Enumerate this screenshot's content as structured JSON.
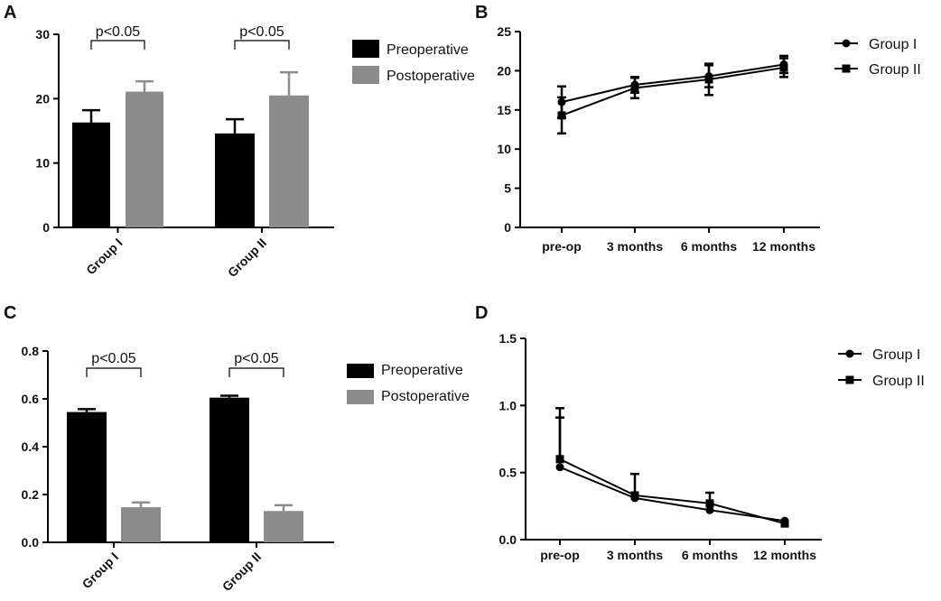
{
  "colors": {
    "pre": "#000000",
    "post": "#8c8c8c",
    "axis": "#000000"
  },
  "chart_data": [
    {
      "panel": "A",
      "type": "bar",
      "categories": [
        "Group I",
        "Group II"
      ],
      "series": [
        {
          "name": "Preoperative",
          "values": [
            16.3,
            14.6
          ],
          "errors": [
            1.9,
            2.2
          ]
        },
        {
          "name": "Postoperative",
          "values": [
            21.1,
            20.5
          ],
          "errors": [
            1.6,
            3.6
          ]
        }
      ],
      "ylim": [
        0,
        30
      ],
      "yticks": [
        0,
        10,
        20,
        30
      ],
      "annotations": [
        "p<0.05",
        "p<0.05"
      ],
      "legend": "right"
    },
    {
      "panel": "B",
      "type": "line",
      "categories": [
        "pre-op",
        "3 months",
        "6 months",
        "12 months"
      ],
      "series": [
        {
          "name": "Group I",
          "marker": "circle",
          "values": [
            16.0,
            18.2,
            19.3,
            20.8
          ],
          "errors": [
            2.0,
            1.0,
            1.4,
            1.1
          ]
        },
        {
          "name": "Group II",
          "marker": "square",
          "values": [
            14.3,
            17.8,
            18.9,
            20.4
          ],
          "errors": [
            2.3,
            1.3,
            2.0,
            1.2
          ]
        }
      ],
      "ylim": [
        0,
        25
      ],
      "yticks": [
        0,
        5,
        10,
        15,
        20,
        25
      ],
      "legend": "right"
    },
    {
      "panel": "C",
      "type": "bar",
      "categories": [
        "Group I",
        "Group II"
      ],
      "series": [
        {
          "name": "Preoperative",
          "values": [
            0.545,
            0.605
          ],
          "errors": [
            0.012,
            0.008
          ]
        },
        {
          "name": "Postoperative",
          "values": [
            0.147,
            0.131
          ],
          "errors": [
            0.02,
            0.024
          ]
        }
      ],
      "ylim": [
        0,
        0.8
      ],
      "yticks": [
        0.0,
        0.2,
        0.4,
        0.6,
        0.8
      ],
      "annotations": [
        "p<0.05",
        "p<0.05"
      ],
      "legend": "right"
    },
    {
      "panel": "D",
      "type": "line",
      "categories": [
        "pre-op",
        "3 months",
        "6 months",
        "12 months"
      ],
      "series": [
        {
          "name": "Group I",
          "marker": "circle",
          "values": [
            0.54,
            0.31,
            0.22,
            0.14
          ],
          "errors": [
            0.37,
            0.0,
            0.0,
            0.0
          ]
        },
        {
          "name": "Group II",
          "marker": "square",
          "values": [
            0.6,
            0.33,
            0.27,
            0.12
          ],
          "errors": [
            0.38,
            0.16,
            0.08,
            0.0
          ]
        }
      ],
      "ylim": [
        0,
        1.5
      ],
      "yticks": [
        0.0,
        0.5,
        1.0,
        1.5
      ],
      "legend": "right"
    }
  ]
}
